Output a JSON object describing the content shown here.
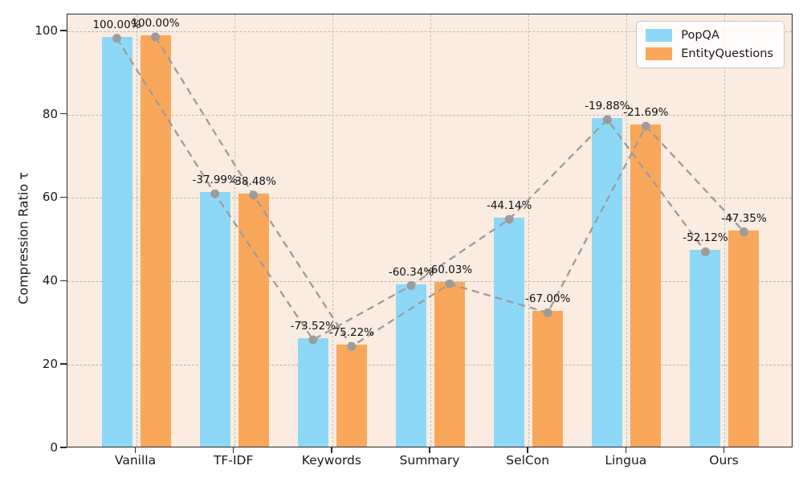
{
  "figure": {
    "background": "#ffffff",
    "plot_background": "#FAECE1",
    "spine_color": "#2a2a2a",
    "grid_color": "#bcb6ae",
    "text_color": "#1a1a1a"
  },
  "chart_data": {
    "type": "bar",
    "title": "",
    "xlabel": "",
    "ylabel": "Compression Ratio τ",
    "categories": [
      "Vanilla",
      "TF-IDF",
      "Keywords",
      "Summary",
      "SelCon",
      "Lingua",
      "Ours"
    ],
    "yticks": [
      0,
      20,
      40,
      60,
      80,
      100
    ],
    "ylim": [
      0,
      104
    ],
    "grid": true,
    "legend_position": "upper right",
    "trend_line_color": "#9c9c9c",
    "series": [
      {
        "name": "PopQA",
        "color": "#8DD8F6",
        "values": [
          98.3,
          61.0,
          26.0,
          39.0,
          54.9,
          78.8,
          47.1
        ],
        "annotations": [
          "100.00%",
          "-37.99%",
          "-73.52%",
          "-60.34%",
          "-44.14%",
          "-19.88%",
          "-52.12%"
        ]
      },
      {
        "name": "EntityQuestions",
        "color": "#F9A75B",
        "values": [
          98.6,
          60.7,
          24.4,
          39.4,
          32.5,
          77.2,
          51.9
        ],
        "annotations": [
          "100.00%",
          "-38.48%",
          "-75.22%",
          "-60.03%",
          "-67.00%",
          "-21.69%",
          "-47.35%"
        ]
      }
    ]
  }
}
